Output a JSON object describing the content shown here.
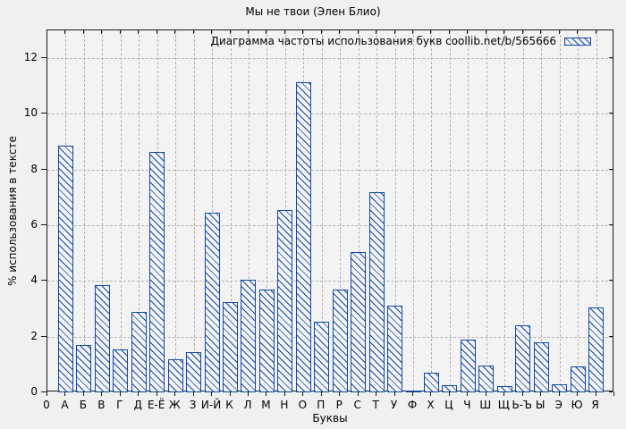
{
  "title": "Мы не твои (Элен Блио)",
  "legend": {
    "label": "Диаграмма частоты использования букв coollib.net/b/565666",
    "swatch": "blue-hatched-bar"
  },
  "colors": {
    "bar": "#1248a4",
    "grid": "#b3b3b3",
    "page_background": "#f0f0f0",
    "plot_background": "#f3f3f3",
    "border": "#1a1a1a"
  },
  "chart_data": {
    "type": "bar",
    "title": "Мы не твои (Элен Блио)",
    "legend_label": "Диаграмма частоты использования букв coollib.net/b/565666",
    "xlabel": "Буквы",
    "ylabel": "% использования в тексте",
    "x_origin_label": "0",
    "categories": [
      "А",
      "Б",
      "В",
      "Г",
      "Д",
      "Е-Ё",
      "Ж",
      "З",
      "И-Й",
      "К",
      "Л",
      "М",
      "Н",
      "О",
      "П",
      "Р",
      "С",
      "Т",
      "У",
      "Ф",
      "Х",
      "Ц",
      "Ч",
      "Ш",
      "Щ",
      "Ь-Ъ",
      "Ы",
      "Э",
      "Ю",
      "Я"
    ],
    "values": [
      8.85,
      1.7,
      3.85,
      1.55,
      2.9,
      8.65,
      1.2,
      1.45,
      6.45,
      3.25,
      4.05,
      3.7,
      6.55,
      11.15,
      2.55,
      3.7,
      5.05,
      7.2,
      3.1,
      0.07,
      0.7,
      0.25,
      1.9,
      0.95,
      0.22,
      2.4,
      1.8,
      0.28,
      0.92,
      3.05
    ],
    "yticks": [
      0,
      2,
      4,
      6,
      8,
      10,
      12
    ],
    "ylim": [
      0,
      13
    ],
    "grid": true,
    "hatch": "diagonal-backslash",
    "legend_position": "top-right",
    "bar_style": "outlined-hatched"
  }
}
